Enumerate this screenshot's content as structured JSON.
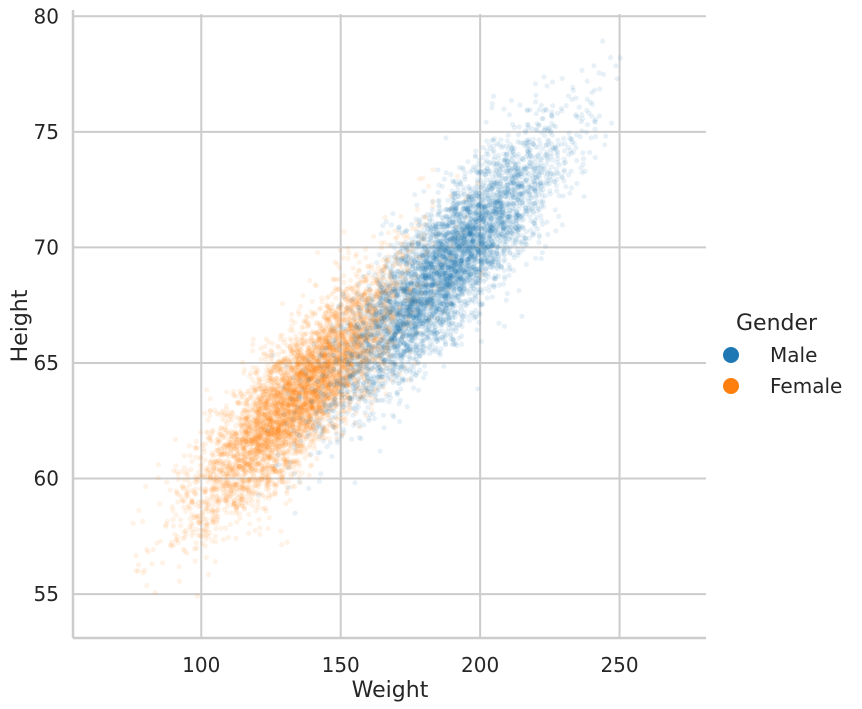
{
  "chart_data": {
    "type": "scatter",
    "title": "",
    "xlabel": "Weight",
    "ylabel": "Height",
    "xlim": [
      54,
      281
    ],
    "ylim": [
      53.1,
      80.1
    ],
    "xticks": [
      100,
      150,
      200,
      250
    ],
    "yticks": [
      55,
      60,
      65,
      70,
      75,
      80
    ],
    "grid": true,
    "legend": {
      "title": "Gender",
      "placement": "right"
    },
    "point_alpha": 0.1,
    "series": [
      {
        "name": "Male",
        "color": "#1f77b4",
        "count": 5000,
        "x_mean": 187,
        "x_sd": 20,
        "y_mean": 69.0,
        "y_sd": 2.9,
        "correlation": 0.86,
        "x_range": [
          112,
          270
        ],
        "y_range": [
          58.4,
          79.0
        ]
      },
      {
        "name": "Female",
        "color": "#ff7f0e",
        "count": 5000,
        "x_mean": 136,
        "x_sd": 19,
        "y_mean": 63.7,
        "y_sd": 2.7,
        "correlation": 0.85,
        "x_range": [
          64,
          203
        ],
        "y_range": [
          54.3,
          73.4
        ]
      }
    ]
  }
}
